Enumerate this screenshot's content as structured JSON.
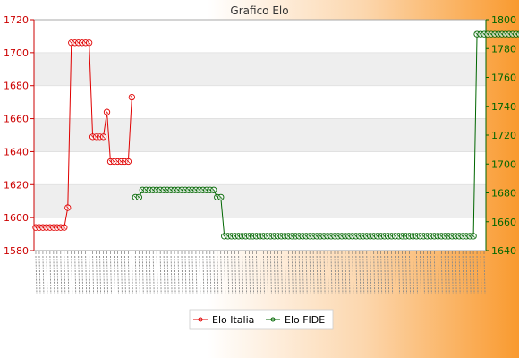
{
  "chart_data": {
    "type": "line",
    "title": "Grafico Elo",
    "grid": true,
    "legend_position": "bottom-center",
    "left_axis": {
      "ylim": [
        1580,
        1720
      ],
      "ticks": [
        1580,
        1600,
        1620,
        1640,
        1660,
        1680,
        1700,
        1720
      ]
    },
    "right_axis": {
      "ylim": [
        1640,
        1800
      ],
      "ticks": [
        1640,
        1660,
        1680,
        1700,
        1720,
        1740,
        1760,
        1780,
        1800
      ]
    },
    "series": [
      {
        "name": "Elo Italia",
        "axis": "left",
        "color": "#e00000",
        "x": [
          0,
          1,
          2,
          3,
          4,
          5,
          6,
          7,
          8,
          9,
          10,
          11,
          12,
          13,
          14,
          15,
          16,
          17,
          18,
          19,
          20,
          21,
          22,
          23,
          24,
          25,
          26,
          27,
          28
        ],
        "values": [
          1594,
          1594,
          1594,
          1594,
          1594,
          1594,
          1594,
          1594,
          1594,
          1606,
          1706,
          1706,
          1706,
          1706,
          1706,
          1706,
          1649,
          1649,
          1649,
          1649,
          1664,
          1634,
          1634,
          1634,
          1634,
          1634,
          1634,
          1673,
          null
        ]
      },
      {
        "name": "Elo FIDE",
        "axis": "right",
        "color": "#006600",
        "x_start": 28,
        "x_end": 126,
        "values": [
          1677,
          1677,
          1682,
          1682,
          1682,
          1682,
          1682,
          1682,
          1682,
          1682,
          1682,
          1682,
          1682,
          1682,
          1682,
          1682,
          1682,
          1682,
          1682,
          1682,
          1682,
          1682,
          1682,
          1677,
          1677,
          1650,
          1650,
          1650,
          1650,
          1650,
          1650,
          1650,
          1650,
          1650,
          1650,
          1650,
          1650,
          1650,
          1650,
          1650,
          1650,
          1650,
          1650,
          1650,
          1650,
          1650,
          1650,
          1650,
          1650,
          1650,
          1650,
          1650,
          1650,
          1650,
          1650,
          1650,
          1650,
          1650,
          1650,
          1650,
          1650,
          1650,
          1650,
          1650,
          1650,
          1650,
          1650,
          1650,
          1650,
          1650,
          1650,
          1650,
          1650,
          1650,
          1650,
          1650,
          1650,
          1650,
          1650,
          1650,
          1650,
          1650,
          1650,
          1650,
          1650,
          1650,
          1650,
          1650,
          1650,
          1650,
          1650,
          1650,
          1650,
          1650,
          1650,
          1650,
          1790,
          1790,
          1790,
          1790,
          1790,
          1790,
          1790,
          1790,
          1790,
          1790,
          1790,
          1790,
          1790,
          1790,
          1790
        ]
      }
    ]
  }
}
